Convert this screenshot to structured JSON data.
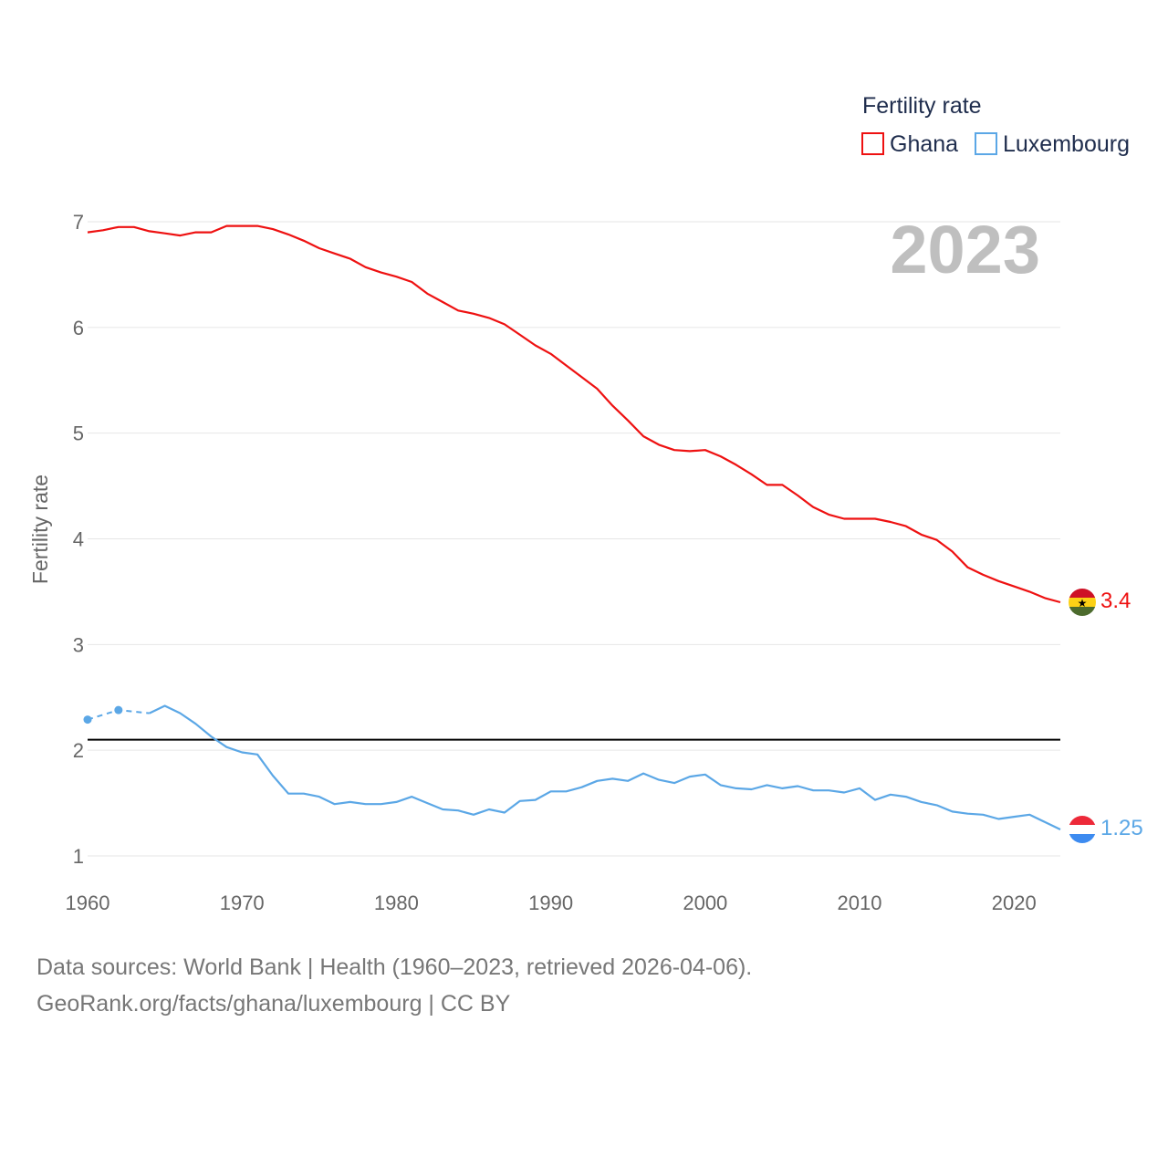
{
  "chart_data": {
    "type": "line",
    "title": "",
    "year_label": "2023",
    "xlabel": "",
    "ylabel": "Fertility rate",
    "xlim": [
      1960,
      2023
    ],
    "ylim": [
      0.85,
      7.2
    ],
    "x_ticks": [
      "1960",
      "1970",
      "1980",
      "1990",
      "2000",
      "2010",
      "2020"
    ],
    "y_ticks": [
      "1",
      "2",
      "3",
      "4",
      "5",
      "6",
      "7"
    ],
    "legend": {
      "title": "Fertility rate",
      "position": "top-right"
    },
    "reference_line": {
      "y": 2.1,
      "color": "#000000"
    },
    "series": [
      {
        "name": "Ghana",
        "color": "#ee1111",
        "end_label": "3.4",
        "flag": "ghana-flag",
        "x": [
          1960,
          1961,
          1962,
          1963,
          1964,
          1965,
          1966,
          1967,
          1968,
          1969,
          1970,
          1971,
          1972,
          1973,
          1974,
          1975,
          1976,
          1977,
          1978,
          1979,
          1980,
          1981,
          1982,
          1983,
          1984,
          1985,
          1986,
          1987,
          1988,
          1989,
          1990,
          1991,
          1992,
          1993,
          1994,
          1995,
          1996,
          1997,
          1998,
          1999,
          2000,
          2001,
          2002,
          2003,
          2004,
          2005,
          2006,
          2007,
          2008,
          2009,
          2010,
          2011,
          2012,
          2013,
          2014,
          2015,
          2016,
          2017,
          2018,
          2019,
          2020,
          2021,
          2022,
          2023
        ],
        "values": [
          6.9,
          6.92,
          6.95,
          6.95,
          6.91,
          6.89,
          6.87,
          6.9,
          6.9,
          6.96,
          6.96,
          6.96,
          6.93,
          6.88,
          6.82,
          6.75,
          6.7,
          6.65,
          6.57,
          6.52,
          6.48,
          6.43,
          6.32,
          6.24,
          6.16,
          6.13,
          6.09,
          6.03,
          5.93,
          5.83,
          5.75,
          5.64,
          5.53,
          5.42,
          5.26,
          5.12,
          4.97,
          4.89,
          4.84,
          4.83,
          4.84,
          4.78,
          4.7,
          4.61,
          4.51,
          4.51,
          4.41,
          4.3,
          4.23,
          4.19,
          4.19,
          4.19,
          4.16,
          4.12,
          4.04,
          3.99,
          3.88,
          3.73,
          3.66,
          3.6,
          3.55,
          3.5,
          3.44,
          3.4
        ]
      },
      {
        "name": "Luxembourg",
        "color": "#5ba7e6",
        "end_label": "1.25",
        "flag": "luxembourg-flag",
        "sparse_points": [
          [
            1960,
            2.29
          ],
          [
            1962,
            2.38
          ],
          [
            1964,
            2.35
          ]
        ],
        "x": [
          1964,
          1965,
          1966,
          1967,
          1968,
          1969,
          1970,
          1971,
          1972,
          1973,
          1974,
          1975,
          1976,
          1977,
          1978,
          1979,
          1980,
          1981,
          1982,
          1983,
          1984,
          1985,
          1986,
          1987,
          1988,
          1989,
          1990,
          1991,
          1992,
          1993,
          1994,
          1995,
          1996,
          1997,
          1998,
          1999,
          2000,
          2001,
          2002,
          2003,
          2004,
          2005,
          2006,
          2007,
          2008,
          2009,
          2010,
          2011,
          2012,
          2013,
          2014,
          2015,
          2016,
          2017,
          2018,
          2019,
          2020,
          2021,
          2022,
          2023
        ],
        "values": [
          2.35,
          2.42,
          2.35,
          2.25,
          2.13,
          2.03,
          1.98,
          1.96,
          1.76,
          1.59,
          1.59,
          1.56,
          1.49,
          1.51,
          1.49,
          1.49,
          1.51,
          1.56,
          1.5,
          1.44,
          1.43,
          1.39,
          1.44,
          1.41,
          1.52,
          1.53,
          1.61,
          1.61,
          1.65,
          1.71,
          1.73,
          1.71,
          1.78,
          1.72,
          1.69,
          1.75,
          1.77,
          1.67,
          1.64,
          1.63,
          1.67,
          1.64,
          1.66,
          1.62,
          1.62,
          1.6,
          1.64,
          1.53,
          1.58,
          1.56,
          1.51,
          1.48,
          1.42,
          1.4,
          1.39,
          1.35,
          1.37,
          1.39,
          1.32,
          1.25
        ]
      }
    ]
  },
  "footer": {
    "source": "Data sources: World Bank | Health (1960–2023, retrieved 2026-04-06).",
    "link": "GeoRank.org/facts/ghana/luxembourg | CC BY"
  }
}
